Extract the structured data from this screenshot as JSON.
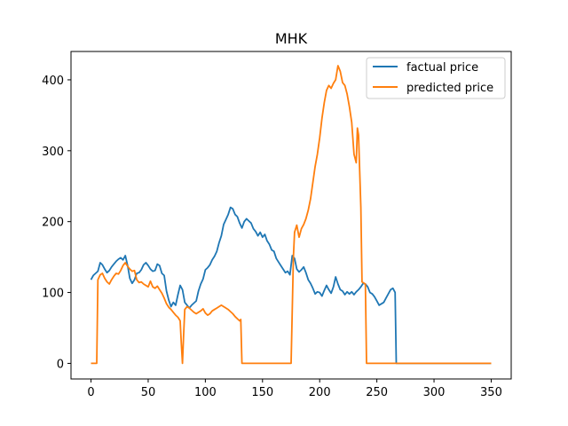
{
  "chart_data": {
    "type": "line",
    "title": "MHK",
    "xlabel": "",
    "ylabel": "",
    "xlim": [
      -17.5,
      367.5
    ],
    "ylim": [
      -22,
      440
    ],
    "x_ticks": [
      0,
      50,
      100,
      150,
      200,
      250,
      300,
      350
    ],
    "y_ticks": [
      0,
      100,
      200,
      300,
      400
    ],
    "grid": false,
    "legend": "upper right",
    "series": [
      {
        "name": "factual price",
        "color": "#1f77b4",
        "points": [
          [
            0,
            118
          ],
          [
            2,
            124
          ],
          [
            4,
            127
          ],
          [
            6,
            130
          ],
          [
            8,
            142
          ],
          [
            10,
            139
          ],
          [
            12,
            133
          ],
          [
            14,
            128
          ],
          [
            16,
            131
          ],
          [
            18,
            136
          ],
          [
            20,
            140
          ],
          [
            22,
            144
          ],
          [
            24,
            147
          ],
          [
            26,
            149
          ],
          [
            28,
            146
          ],
          [
            30,
            152
          ],
          [
            32,
            138
          ],
          [
            34,
            120
          ],
          [
            36,
            113
          ],
          [
            38,
            118
          ],
          [
            40,
            127
          ],
          [
            42,
            128
          ],
          [
            44,
            132
          ],
          [
            46,
            139
          ],
          [
            48,
            142
          ],
          [
            50,
            138
          ],
          [
            52,
            133
          ],
          [
            54,
            130
          ],
          [
            56,
            131
          ],
          [
            58,
            140
          ],
          [
            60,
            138
          ],
          [
            62,
            127
          ],
          [
            64,
            124
          ],
          [
            66,
            102
          ],
          [
            68,
            89
          ],
          [
            70,
            80
          ],
          [
            72,
            86
          ],
          [
            74,
            82
          ],
          [
            76,
            97
          ],
          [
            78,
            110
          ],
          [
            80,
            104
          ],
          [
            82,
            86
          ],
          [
            84,
            82
          ],
          [
            86,
            78
          ],
          [
            88,
            82
          ],
          [
            90,
            85
          ],
          [
            92,
            88
          ],
          [
            94,
            102
          ],
          [
            96,
            112
          ],
          [
            98,
            119
          ],
          [
            100,
            132
          ],
          [
            102,
            135
          ],
          [
            104,
            139
          ],
          [
            106,
            146
          ],
          [
            108,
            151
          ],
          [
            110,
            158
          ],
          [
            112,
            170
          ],
          [
            114,
            180
          ],
          [
            116,
            196
          ],
          [
            118,
            203
          ],
          [
            120,
            210
          ],
          [
            122,
            220
          ],
          [
            124,
            218
          ],
          [
            126,
            210
          ],
          [
            128,
            207
          ],
          [
            130,
            198
          ],
          [
            132,
            191
          ],
          [
            134,
            200
          ],
          [
            136,
            204
          ],
          [
            138,
            201
          ],
          [
            140,
            198
          ],
          [
            142,
            190
          ],
          [
            144,
            186
          ],
          [
            146,
            180
          ],
          [
            148,
            185
          ],
          [
            150,
            178
          ],
          [
            152,
            182
          ],
          [
            154,
            173
          ],
          [
            156,
            168
          ],
          [
            158,
            160
          ],
          [
            160,
            158
          ],
          [
            162,
            148
          ],
          [
            164,
            143
          ],
          [
            166,
            138
          ],
          [
            168,
            133
          ],
          [
            170,
            128
          ],
          [
            172,
            130
          ],
          [
            174,
            125
          ],
          [
            176,
            152
          ],
          [
            178,
            148
          ],
          [
            180,
            133
          ],
          [
            182,
            129
          ],
          [
            184,
            132
          ],
          [
            186,
            136
          ],
          [
            188,
            128
          ],
          [
            190,
            118
          ],
          [
            192,
            113
          ],
          [
            194,
            106
          ],
          [
            196,
            98
          ],
          [
            198,
            101
          ],
          [
            200,
            100
          ],
          [
            202,
            95
          ],
          [
            204,
            103
          ],
          [
            206,
            110
          ],
          [
            208,
            104
          ],
          [
            210,
            99
          ],
          [
            212,
            108
          ],
          [
            214,
            122
          ],
          [
            216,
            112
          ],
          [
            218,
            104
          ],
          [
            220,
            102
          ],
          [
            222,
            97
          ],
          [
            224,
            101
          ],
          [
            226,
            98
          ],
          [
            228,
            101
          ],
          [
            230,
            97
          ],
          [
            232,
            101
          ],
          [
            234,
            104
          ],
          [
            236,
            108
          ],
          [
            238,
            113
          ],
          [
            240,
            112
          ],
          [
            242,
            108
          ],
          [
            244,
            100
          ],
          [
            246,
            98
          ],
          [
            248,
            94
          ],
          [
            250,
            88
          ],
          [
            252,
            82
          ],
          [
            254,
            84
          ],
          [
            256,
            86
          ],
          [
            258,
            92
          ],
          [
            260,
            98
          ],
          [
            262,
            104
          ],
          [
            264,
            106
          ],
          [
            266,
            100
          ],
          [
            267,
            0
          ],
          [
            300,
            0
          ],
          [
            350,
            0
          ]
        ]
      },
      {
        "name": "predicted price",
        "color": "#ff7f0e",
        "points": [
          [
            0,
            0
          ],
          [
            5,
            0
          ],
          [
            6,
            118
          ],
          [
            8,
            125
          ],
          [
            10,
            127
          ],
          [
            12,
            120
          ],
          [
            14,
            115
          ],
          [
            16,
            112
          ],
          [
            18,
            118
          ],
          [
            20,
            123
          ],
          [
            22,
            127
          ],
          [
            24,
            126
          ],
          [
            26,
            131
          ],
          [
            28,
            138
          ],
          [
            30,
            142
          ],
          [
            32,
            137
          ],
          [
            34,
            133
          ],
          [
            36,
            130
          ],
          [
            38,
            131
          ],
          [
            40,
            118
          ],
          [
            42,
            114
          ],
          [
            44,
            115
          ],
          [
            46,
            112
          ],
          [
            48,
            110
          ],
          [
            50,
            108
          ],
          [
            52,
            116
          ],
          [
            54,
            108
          ],
          [
            56,
            106
          ],
          [
            58,
            109
          ],
          [
            60,
            104
          ],
          [
            62,
            99
          ],
          [
            64,
            92
          ],
          [
            66,
            84
          ],
          [
            68,
            79
          ],
          [
            70,
            76
          ],
          [
            72,
            72
          ],
          [
            74,
            68
          ],
          [
            76,
            65
          ],
          [
            78,
            60
          ],
          [
            79,
            28
          ],
          [
            80,
            0
          ],
          [
            81,
            40
          ],
          [
            82,
            76
          ],
          [
            84,
            80
          ],
          [
            86,
            78
          ],
          [
            88,
            75
          ],
          [
            90,
            72
          ],
          [
            92,
            70
          ],
          [
            94,
            72
          ],
          [
            96,
            74
          ],
          [
            98,
            77
          ],
          [
            100,
            71
          ],
          [
            102,
            68
          ],
          [
            104,
            70
          ],
          [
            106,
            74
          ],
          [
            108,
            76
          ],
          [
            110,
            78
          ],
          [
            112,
            80
          ],
          [
            114,
            82
          ],
          [
            116,
            80
          ],
          [
            118,
            78
          ],
          [
            120,
            76
          ],
          [
            122,
            73
          ],
          [
            124,
            70
          ],
          [
            126,
            66
          ],
          [
            128,
            63
          ],
          [
            130,
            60
          ],
          [
            131,
            62
          ],
          [
            132,
            0
          ],
          [
            175,
            0
          ],
          [
            177,
            150
          ],
          [
            178,
            185
          ],
          [
            180,
            195
          ],
          [
            182,
            178
          ],
          [
            184,
            190
          ],
          [
            186,
            196
          ],
          [
            188,
            204
          ],
          [
            190,
            216
          ],
          [
            192,
            232
          ],
          [
            194,
            255
          ],
          [
            196,
            278
          ],
          [
            198,
            295
          ],
          [
            200,
            318
          ],
          [
            202,
            346
          ],
          [
            204,
            368
          ],
          [
            206,
            385
          ],
          [
            208,
            392
          ],
          [
            210,
            388
          ],
          [
            212,
            395
          ],
          [
            214,
            400
          ],
          [
            216,
            420
          ],
          [
            218,
            412
          ],
          [
            220,
            396
          ],
          [
            222,
            392
          ],
          [
            224,
            380
          ],
          [
            226,
            362
          ],
          [
            228,
            340
          ],
          [
            230,
            295
          ],
          [
            232,
            283
          ],
          [
            233,
            332
          ],
          [
            234,
            322
          ],
          [
            236,
            220
          ],
          [
            237,
            115
          ],
          [
            240,
            112
          ],
          [
            241,
            0
          ],
          [
            300,
            0
          ],
          [
            350,
            0
          ]
        ]
      }
    ]
  }
}
